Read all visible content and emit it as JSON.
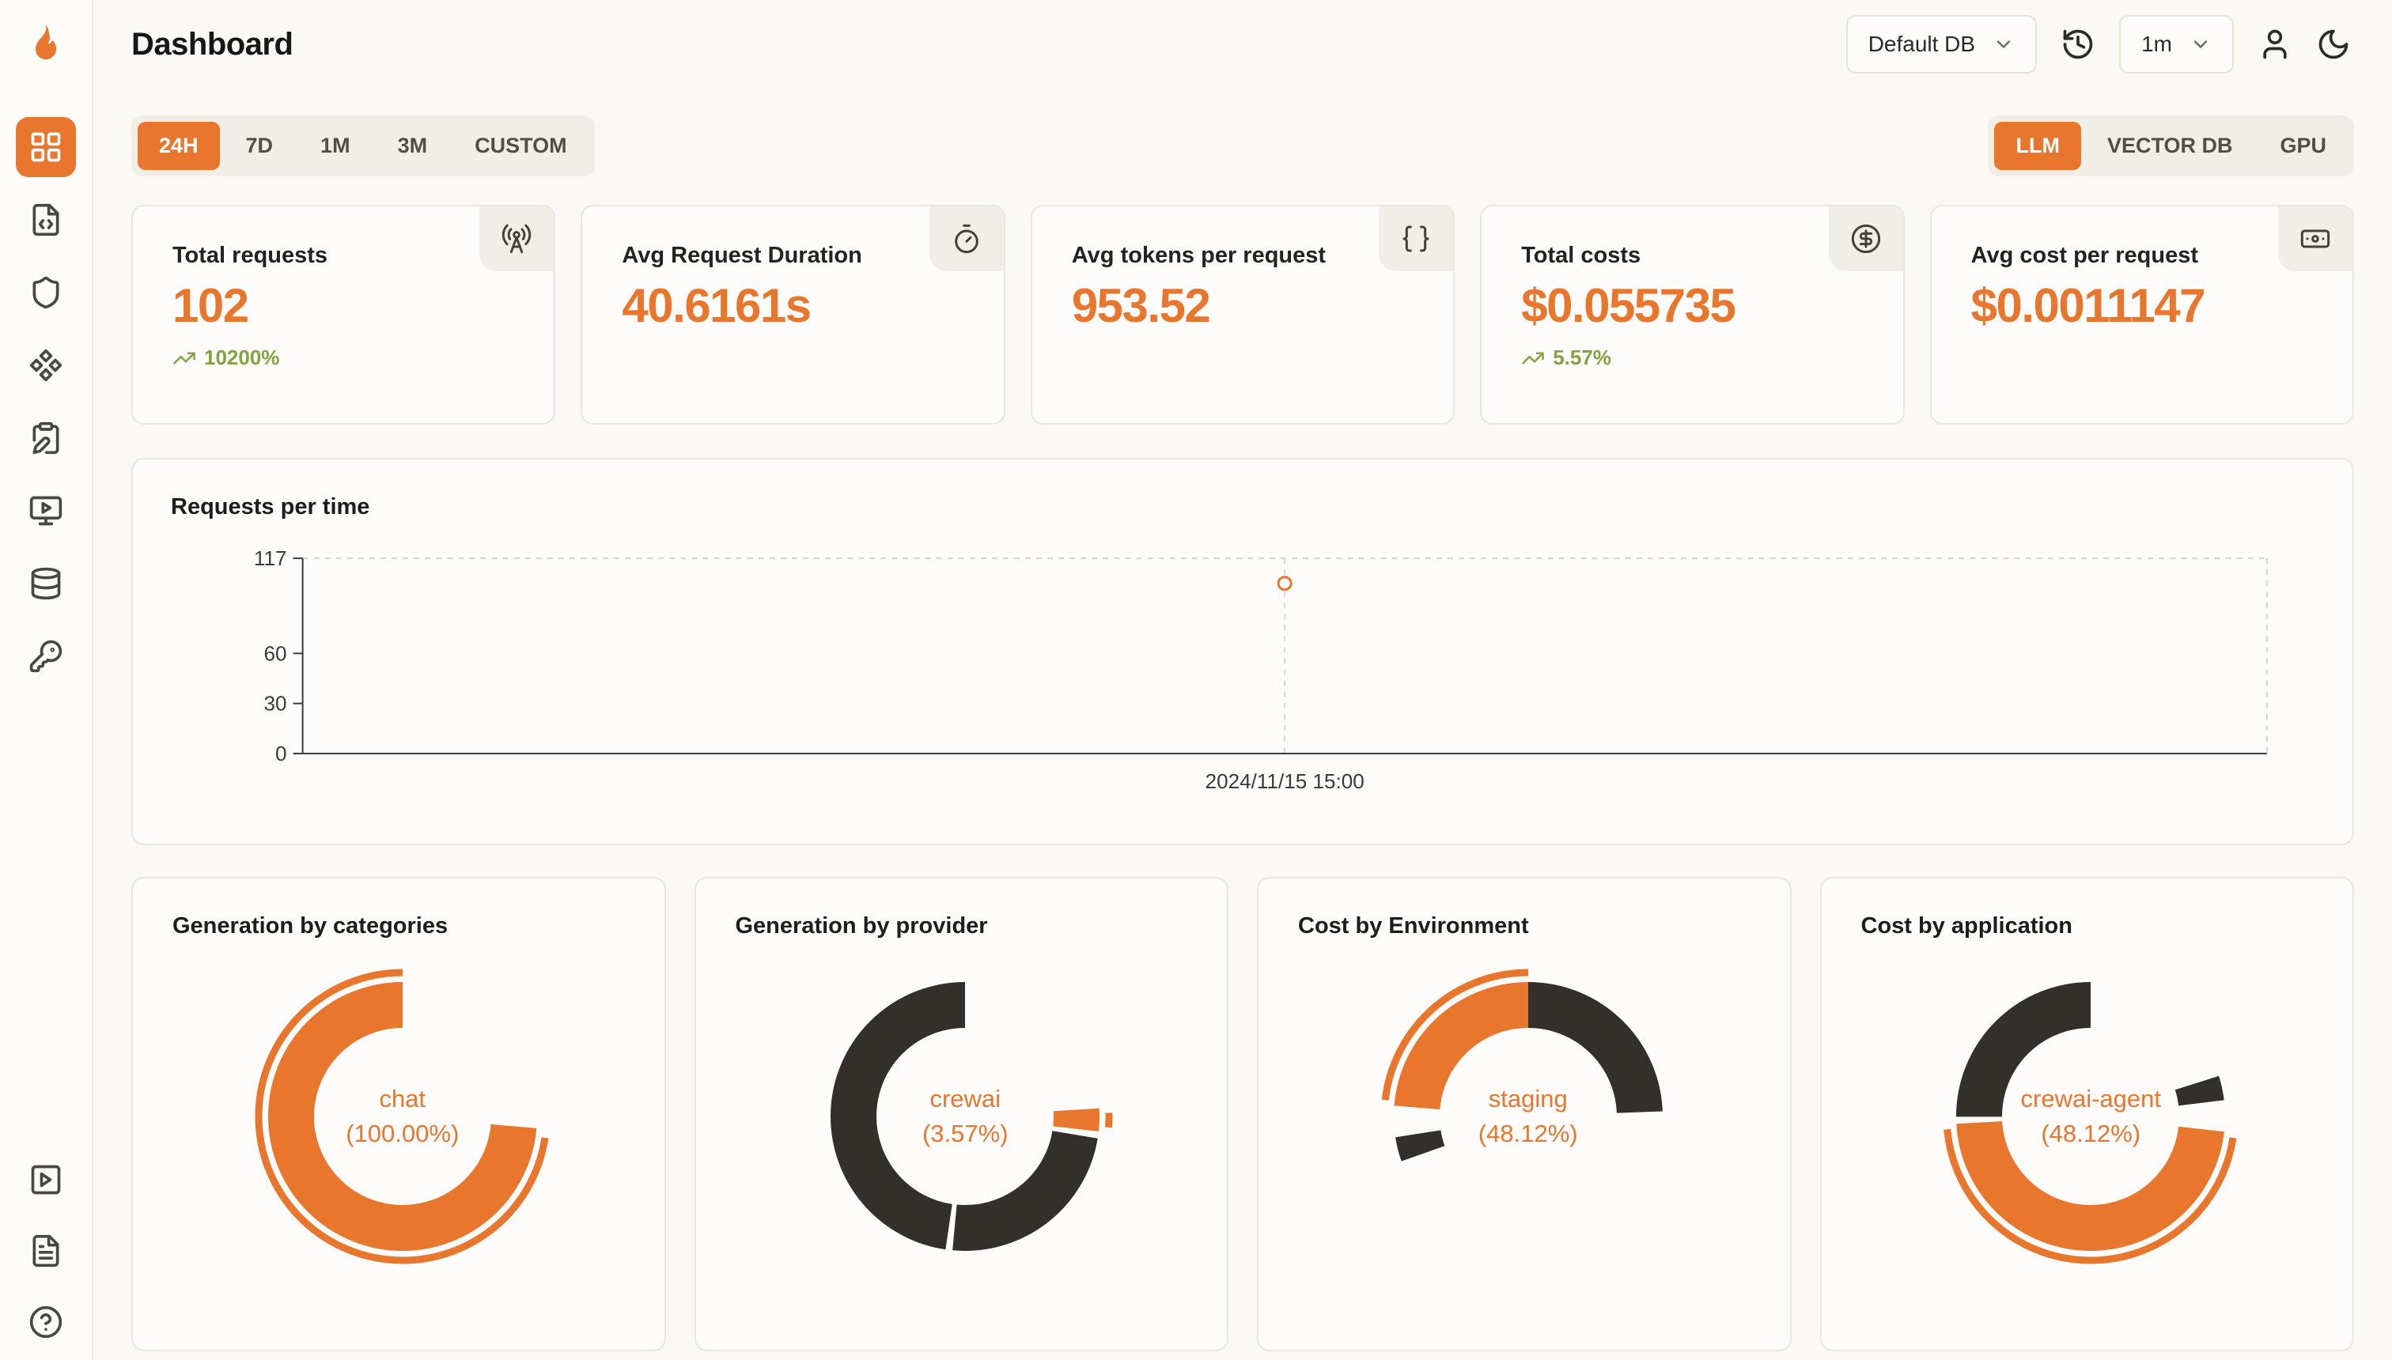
{
  "app": {
    "title": "Dashboard"
  },
  "header": {
    "db_selector": {
      "value": "Default DB"
    },
    "interval_selector": {
      "value": "1m"
    }
  },
  "sidebar": {
    "icons": [
      "layout-grid",
      "file-code",
      "shield",
      "component",
      "clipboard-pen",
      "monitor-play",
      "database",
      "key",
      "square-play",
      "file-text",
      "circle-help"
    ],
    "active": "layout-grid"
  },
  "tabs": {
    "time": {
      "items": [
        "24H",
        "7D",
        "1M",
        "3M",
        "CUSTOM"
      ],
      "active": "24H"
    },
    "source": {
      "items": [
        "LLM",
        "VECTOR DB",
        "GPU"
      ],
      "active": "LLM"
    }
  },
  "stats": [
    {
      "label": "Total requests",
      "value": "102",
      "change": "10200%",
      "icon": "radio-tower"
    },
    {
      "label": "Avg Request Duration",
      "value": "40.6161s",
      "icon": "timer"
    },
    {
      "label": "Avg tokens per request",
      "value": "953.52",
      "icon": "braces"
    },
    {
      "label": "Total costs",
      "value": "$0.055735",
      "change": "5.57%",
      "icon": "circle-dollar-sign"
    },
    {
      "label": "Avg cost per request",
      "value": "$0.0011147",
      "icon": "banknote"
    }
  ],
  "colors": {
    "accent": "#E8762C",
    "dark_segment": "#332F2B",
    "positive": "#82A33E",
    "background": "#FAF9F5"
  },
  "chart_data": [
    {
      "type": "line",
      "title": "Requests per time",
      "x": [
        "2024/11/15 15:00"
      ],
      "values": [
        102
      ],
      "ylim": [
        0,
        117
      ],
      "yticks": [
        0,
        30,
        60,
        117
      ],
      "point_x_pct": 50,
      "color": "#E8762C",
      "grid": "dashed top/right border, dashed crosshair at point",
      "legend": "none"
    },
    {
      "type": "pie",
      "title": "Generation by categories",
      "center_label": [
        "chat",
        "(100.00%)"
      ],
      "rotation": 95,
      "segments": [
        {
          "label": "chat",
          "pct": 100,
          "color": "#E8762C"
        }
      ]
    },
    {
      "type": "pie",
      "title": "Generation by provider",
      "center_label": [
        "crewai",
        "(3.57%)"
      ],
      "rotation": 85,
      "segments": [
        {
          "label": "crewai",
          "pct": 3.57,
          "color": "#E8762C"
        },
        {
          "label": "",
          "pct": 24.7,
          "color": "#332F2B"
        },
        {
          "label": "",
          "pct": 71.73,
          "color": "#332F2B"
        }
      ]
    },
    {
      "type": "pie",
      "title": "Cost by Environment",
      "center_label": [
        "staging",
        "(48.12%)"
      ],
      "rotation": 273,
      "segments": [
        {
          "label": "staging",
          "pct": 48.12,
          "color": "#E8762C"
        },
        {
          "label": "",
          "pct": 48.12,
          "color": "#332F2B"
        },
        {
          "label": "",
          "pct": 3.76,
          "color": "#332F2B"
        }
      ]
    },
    {
      "type": "pie",
      "title": "Cost by application",
      "center_label": [
        "crewai-agent",
        "(48.12%)"
      ],
      "rotation": 95,
      "segments": [
        {
          "label": "crewai-agent",
          "pct": 48.12,
          "color": "#E8762C"
        },
        {
          "label": "",
          "pct": 48.12,
          "color": "#332F2B"
        },
        {
          "label": "",
          "pct": 3.76,
          "color": "#332F2B"
        }
      ]
    }
  ]
}
